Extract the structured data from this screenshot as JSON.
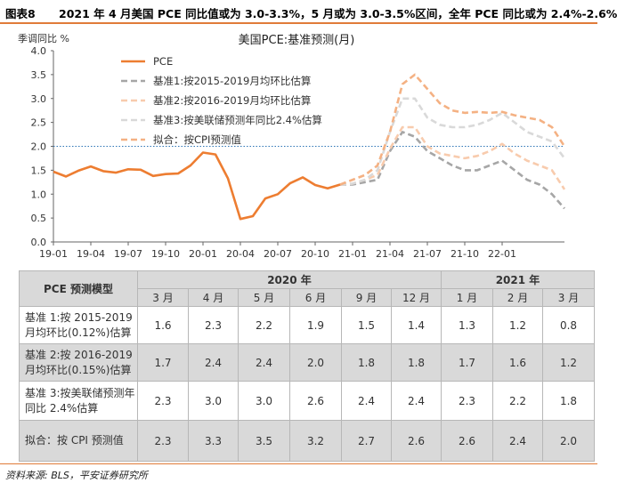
{
  "header": {
    "label": "图表8",
    "title": "2021 年 4 月美国 PCE 同比值或为 3.0-3.3%，5 月或为 3.0-3.5%区间，全年 PCE 同比或为 2.4%-2.6%"
  },
  "chart_data": {
    "type": "line",
    "title": "美国PCE:基准预测(月)",
    "ylabel": "季调同比 %",
    "ylim": [
      0,
      4.0
    ],
    "yticks": [
      "0.0",
      "0.5",
      "1.0",
      "1.5",
      "2.0",
      "2.5",
      "3.0",
      "3.5",
      "4.0"
    ],
    "xticks": [
      "19-01",
      "19-04",
      "19-07",
      "19-10",
      "20-01",
      "20-04",
      "20-07",
      "20-10",
      "21-01",
      "21-04",
      "21-07",
      "21-10",
      "22-01"
    ],
    "reference_line": 2.0,
    "series": [
      {
        "name": "PCE",
        "color": "#ed7d31",
        "style": "solid",
        "values": [
          1.47,
          1.37,
          1.49,
          1.58,
          1.48,
          1.45,
          1.52,
          1.51,
          1.38,
          1.42,
          1.43,
          1.6,
          1.87,
          1.83,
          1.33,
          0.48,
          0.54,
          0.91,
          1.0,
          1.23,
          1.35,
          1.19,
          1.12,
          1.2
        ]
      },
      {
        "name": "基准1:按2015-2019月均环比估算",
        "color": "#a6a6a6",
        "style": "dashed",
        "start_index": 23,
        "values": [
          1.2,
          1.2,
          1.25,
          1.3,
          1.9,
          2.3,
          2.2,
          1.9,
          1.75,
          1.6,
          1.5,
          1.5,
          1.6,
          1.7,
          1.5,
          1.3,
          1.2,
          1.0,
          0.7
        ]
      },
      {
        "name": "基准2:按2016-2019月均环比估算",
        "color": "#f8cbad",
        "style": "dashed",
        "start_index": 23,
        "values": [
          1.2,
          1.22,
          1.3,
          1.4,
          1.95,
          2.4,
          2.4,
          2.0,
          1.85,
          1.8,
          1.75,
          1.8,
          1.9,
          2.05,
          1.85,
          1.7,
          1.6,
          1.5,
          1.1
        ]
      },
      {
        "name": "基准3:按美联储预测年同比2.4%估算",
        "color": "#d9d9d9",
        "style": "dashed",
        "start_index": 23,
        "values": [
          1.2,
          1.22,
          1.3,
          1.5,
          2.3,
          3.0,
          3.0,
          2.6,
          2.45,
          2.4,
          2.4,
          2.45,
          2.55,
          2.7,
          2.5,
          2.3,
          2.2,
          2.1,
          1.75
        ]
      },
      {
        "name": "拟合：按CPI预测值",
        "color": "#f4b183",
        "style": "dashed",
        "start_index": 23,
        "values": [
          1.2,
          1.3,
          1.4,
          1.6,
          2.3,
          3.3,
          3.5,
          3.2,
          2.9,
          2.75,
          2.7,
          2.72,
          2.7,
          2.72,
          2.65,
          2.6,
          2.55,
          2.4,
          2.0
        ]
      }
    ]
  },
  "table": {
    "corner": "PCE 预测模型",
    "group_2020": "2020 年",
    "group_2021": "2021 年",
    "months": [
      "3 月",
      "4 月",
      "5 月",
      "6 月",
      "9 月",
      "12 月",
      "1 月",
      "2 月",
      "3 月"
    ],
    "rows": [
      {
        "label": "基准 1:按 2015-2019 月均环比(0.12%)估算",
        "cells": [
          "1.6",
          "2.3",
          "2.2",
          "1.9",
          "1.5",
          "1.4",
          "1.3",
          "1.2",
          "0.8"
        ]
      },
      {
        "label": "基准 2:按 2016-2019 月均环比(0.15%)估算",
        "cells": [
          "1.7",
          "2.4",
          "2.4",
          "2.0",
          "1.8",
          "1.8",
          "1.7",
          "1.6",
          "1.2"
        ]
      },
      {
        "label": "基准 3:按美联储预测年同比 2.4%估算",
        "cells": [
          "2.3",
          "3.0",
          "3.0",
          "2.6",
          "2.4",
          "2.4",
          "2.3",
          "2.2",
          "1.8"
        ]
      },
      {
        "label": "拟合：按 CPI 预测值",
        "cells": [
          "2.3",
          "3.3",
          "3.5",
          "3.2",
          "2.7",
          "2.6",
          "2.6",
          "2.4",
          "2.0"
        ]
      }
    ]
  },
  "footer": {
    "source": "资料来源: BLS，平安证券研究所"
  }
}
